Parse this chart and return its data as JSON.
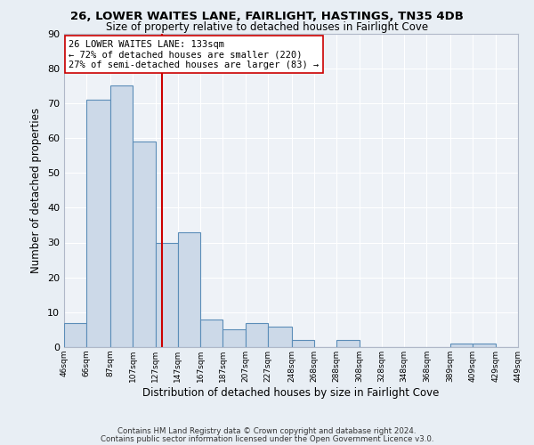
{
  "title1": "26, LOWER WAITES LANE, FAIRLIGHT, HASTINGS, TN35 4DB",
  "title2": "Size of property relative to detached houses in Fairlight Cove",
  "xlabel": "Distribution of detached houses by size in Fairlight Cove",
  "ylabel": "Number of detached properties",
  "bin_labels": [
    "46sqm",
    "66sqm",
    "87sqm",
    "107sqm",
    "127sqm",
    "147sqm",
    "167sqm",
    "187sqm",
    "207sqm",
    "227sqm",
    "248sqm",
    "268sqm",
    "288sqm",
    "308sqm",
    "328sqm",
    "348sqm",
    "368sqm",
    "389sqm",
    "409sqm",
    "429sqm",
    "449sqm"
  ],
  "bin_lefts": [
    46,
    66,
    87,
    107,
    127,
    147,
    167,
    187,
    207,
    227,
    248,
    268,
    288,
    308,
    328,
    348,
    368,
    389,
    409,
    429
  ],
  "bin_rights": [
    66,
    87,
    107,
    127,
    147,
    167,
    187,
    207,
    227,
    248,
    268,
    288,
    308,
    328,
    348,
    368,
    389,
    409,
    429,
    449
  ],
  "bar_heights": [
    7,
    71,
    75,
    59,
    30,
    33,
    8,
    5,
    7,
    6,
    2,
    0,
    2,
    0,
    0,
    0,
    0,
    1,
    1,
    0
  ],
  "bar_fill_color": "#ccd9e8",
  "bar_edge_color": "#5b8db8",
  "vline_x": 133,
  "vline_color": "#cc0000",
  "annotation_line1": "26 LOWER WAITES LANE: 133sqm",
  "annotation_line2": "← 72% of detached houses are smaller (220)",
  "annotation_line3": "27% of semi-detached houses are larger (83) →",
  "annotation_box_color": "#ffffff",
  "annotation_box_edge": "#cc0000",
  "ylim": [
    0,
    90
  ],
  "yticks": [
    0,
    10,
    20,
    30,
    40,
    50,
    60,
    70,
    80,
    90
  ],
  "footer1": "Contains HM Land Registry data © Crown copyright and database right 2024.",
  "footer2": "Contains public sector information licensed under the Open Government Licence v3.0.",
  "bg_color": "#e8eef4",
  "plot_bg_color": "#eef2f7"
}
